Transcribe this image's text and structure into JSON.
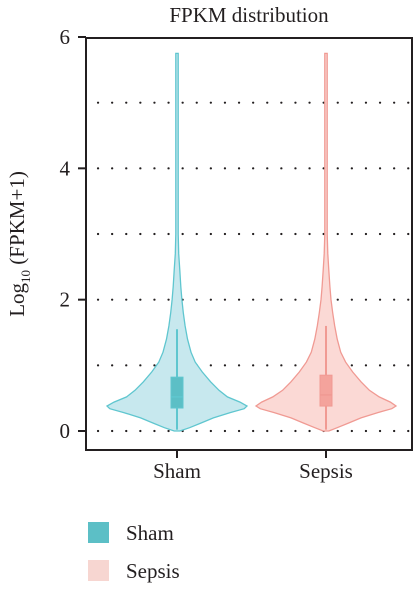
{
  "chart_data": {
    "type": "violin",
    "title": "FPKM distribution",
    "ylabel_main": "Log",
    "ylabel_sub": "10",
    "ylabel_rest": " (FPKM+1)",
    "ylim": [
      0,
      6
    ],
    "yticks": [
      0,
      2,
      4,
      6
    ],
    "gridlines": [
      0,
      1,
      2,
      3,
      4,
      5
    ],
    "grid": "dotted horizontal",
    "categories": [
      "Sham",
      "Sepsis"
    ],
    "series": [
      {
        "name": "Sham",
        "fill": "#c7e8ee",
        "stroke": "#5fc6cf",
        "box_fill": "#5cbfc6",
        "max": 5.75,
        "min": 0.0,
        "whisker_low": 0.02,
        "whisker_high": 1.55,
        "q1": 0.35,
        "median": 0.52,
        "q3": 0.82,
        "density": [
          [
            0.0,
            0.02
          ],
          [
            0.05,
            0.09
          ],
          [
            0.12,
            0.17
          ],
          [
            0.2,
            0.26
          ],
          [
            0.28,
            0.38
          ],
          [
            0.34,
            0.48
          ],
          [
            0.38,
            0.5
          ],
          [
            0.44,
            0.45
          ],
          [
            0.52,
            0.36
          ],
          [
            0.62,
            0.3
          ],
          [
            0.75,
            0.24
          ],
          [
            0.9,
            0.18
          ],
          [
            1.05,
            0.13
          ],
          [
            1.2,
            0.1
          ],
          [
            1.4,
            0.075
          ],
          [
            1.6,
            0.058
          ],
          [
            1.8,
            0.045
          ],
          [
            2.0,
            0.035
          ],
          [
            2.2,
            0.027
          ],
          [
            2.45,
            0.02
          ],
          [
            2.7,
            0.012
          ],
          [
            3.0,
            0.006
          ],
          [
            3.5,
            0.003
          ],
          [
            4.5,
            0.0015
          ],
          [
            5.75,
            0.0005
          ]
        ]
      },
      {
        "name": "Sepsis",
        "fill": "#fbd9d5",
        "stroke": "#f09a93",
        "box_fill": "#f4a39c",
        "max": 5.75,
        "min": 0.0,
        "whisker_low": 0.02,
        "whisker_high": 1.6,
        "q1": 0.38,
        "median": 0.55,
        "q3": 0.85,
        "density": [
          [
            0.0,
            0.02
          ],
          [
            0.05,
            0.08
          ],
          [
            0.12,
            0.16
          ],
          [
            0.2,
            0.25
          ],
          [
            0.28,
            0.37
          ],
          [
            0.34,
            0.47
          ],
          [
            0.38,
            0.5
          ],
          [
            0.44,
            0.46
          ],
          [
            0.52,
            0.38
          ],
          [
            0.62,
            0.31
          ],
          [
            0.75,
            0.25
          ],
          [
            0.9,
            0.19
          ],
          [
            1.05,
            0.14
          ],
          [
            1.2,
            0.105
          ],
          [
            1.4,
            0.08
          ],
          [
            1.6,
            0.062
          ],
          [
            1.8,
            0.048
          ],
          [
            2.0,
            0.036
          ],
          [
            2.2,
            0.028
          ],
          [
            2.45,
            0.02
          ],
          [
            2.7,
            0.013
          ],
          [
            3.0,
            0.007
          ],
          [
            3.5,
            0.003
          ],
          [
            4.5,
            0.0015
          ],
          [
            5.75,
            0.0005
          ]
        ]
      }
    ],
    "legend": {
      "placement": "bottom-left",
      "items": [
        {
          "label": "Sham",
          "color": "#5cbfc6"
        },
        {
          "label": "Sepsis",
          "color": "#f7d6d1"
        }
      ]
    }
  }
}
